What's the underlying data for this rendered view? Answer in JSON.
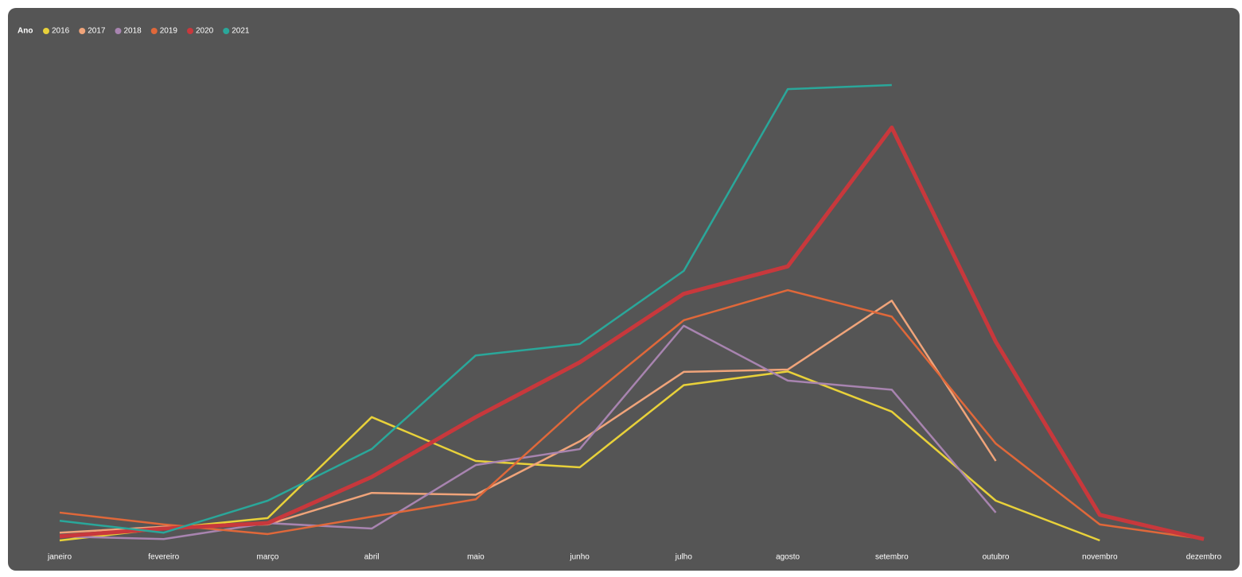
{
  "chart_data": {
    "type": "line",
    "legend_title": "Ano",
    "categories": [
      "janeiro",
      "fevereiro",
      "março",
      "abril",
      "maio",
      "junho",
      "julho",
      "agosto",
      "setembro",
      "outubro",
      "novembro",
      "dezembro"
    ],
    "series": [
      {
        "name": "2016",
        "color": "#e8d13a",
        "values": [
          0,
          2.6,
          4.9,
          27,
          17.4,
          16,
          34,
          37,
          28.2,
          8.7,
          0,
          null
        ]
      },
      {
        "name": "2017",
        "color": "#f0a47a",
        "values": [
          1.7,
          3,
          3.5,
          10.4,
          10,
          21.7,
          36.9,
          37.4,
          52.5,
          17.4,
          null,
          null
        ]
      },
      {
        "name": "2018",
        "color": "#a884b0",
        "values": [
          0.9,
          0.3,
          3.8,
          2.6,
          16.5,
          20,
          47,
          35,
          33,
          6.1,
          null,
          null
        ]
      },
      {
        "name": "2019",
        "color": "#e0683a",
        "values": [
          6.1,
          3.5,
          1.4,
          5.2,
          9,
          29.6,
          48.2,
          54.8,
          49,
          21.2,
          3.5,
          0.3
        ]
      },
      {
        "name": "2020",
        "color": "#c8383c",
        "values": [
          0.9,
          2.6,
          3.8,
          13.9,
          27,
          39,
          54,
          60,
          90.4,
          43.5,
          5.6,
          0.3
        ]
      },
      {
        "name": "2021",
        "color": "#2aa79a",
        "values": [
          4.3,
          1.7,
          8.7,
          20,
          40.5,
          43,
          59,
          98.8,
          99.7,
          null,
          null,
          null
        ]
      }
    ]
  }
}
